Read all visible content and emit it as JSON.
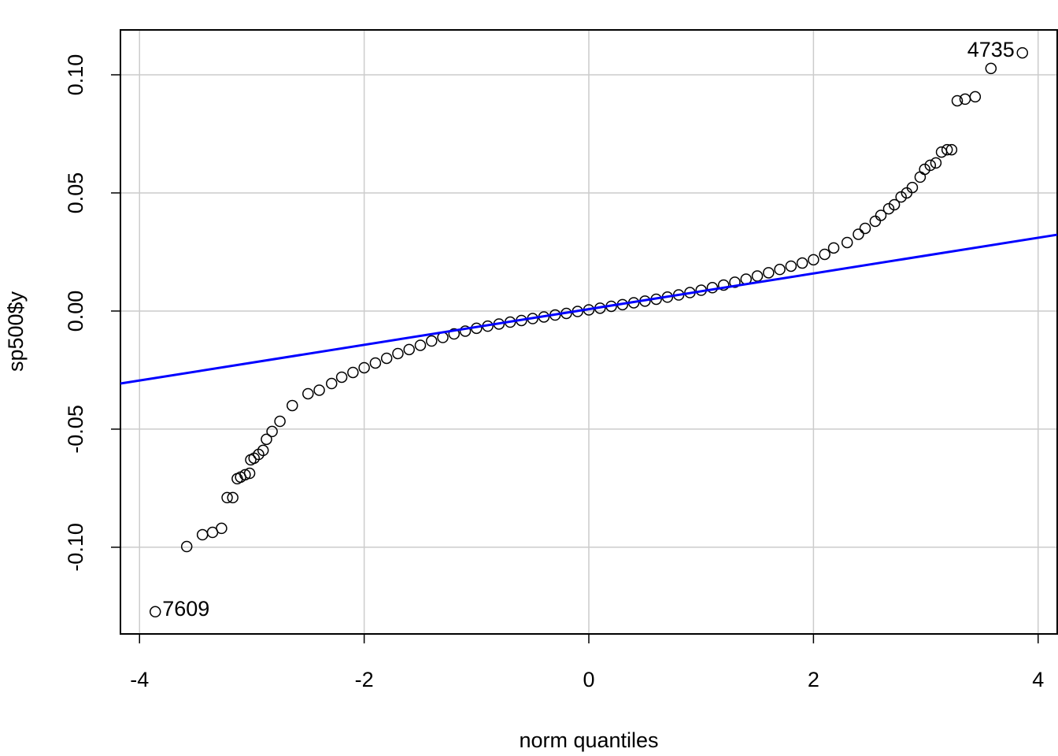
{
  "chart_data": {
    "type": "scatter",
    "xlabel": "norm quantiles",
    "ylabel": "sp500$y",
    "xlim": [
      -4.17,
      4.17
    ],
    "ylim": [
      -0.1367,
      0.119
    ],
    "xticks": [
      -4,
      -2,
      0,
      2,
      4
    ],
    "yticks": [
      {
        "value": 0.1,
        "label": "0.10"
      },
      {
        "value": 0.05,
        "label": "0.05"
      },
      {
        "value": 0,
        "label": "0.00"
      },
      {
        "value": -0.05,
        "label": "-0.05"
      },
      {
        "value": -0.1,
        "label": "-0.10"
      }
    ],
    "grid": true,
    "series": [
      {
        "color": "#000000",
        "x": [
          -3.86,
          -3.58,
          -3.44,
          -3.35,
          -3.27,
          -3.22,
          -3.17,
          -3.13,
          -3.1,
          -3.06,
          -3.02,
          -3.01,
          -2.98,
          -2.94,
          -2.9,
          -2.87,
          -2.82,
          -2.75,
          -2.64,
          -2.5,
          -2.4,
          -2.29,
          -2.2,
          -2.1,
          -2.0,
          -1.9,
          -1.8,
          -1.7,
          -1.6,
          -1.5,
          -1.4,
          -1.3,
          -1.2,
          -1.1,
          -1.0,
          -0.9,
          -0.8,
          -0.7,
          -0.6,
          -0.5,
          -0.4,
          -0.3,
          -0.2,
          -0.1,
          0,
          0.1,
          0.2,
          0.3,
          0.4,
          0.5,
          0.6,
          0.7,
          0.8,
          0.9,
          1.0,
          1.1,
          1.2,
          1.3,
          1.4,
          1.5,
          1.6,
          1.7,
          1.8,
          1.9,
          2.0,
          2.1,
          2.18,
          2.3,
          2.4,
          2.46,
          2.55,
          2.6,
          2.67,
          2.72,
          2.78,
          2.83,
          2.88,
          2.95,
          2.99,
          3.04,
          3.09,
          3.14,
          3.19,
          3.23,
          3.28,
          3.35,
          3.44,
          3.58,
          3.86
        ],
        "values": [
          -0.1273,
          -0.0997,
          -0.0947,
          -0.0937,
          -0.092,
          -0.079,
          -0.079,
          -0.071,
          -0.0703,
          -0.0693,
          -0.0687,
          -0.063,
          -0.0623,
          -0.0607,
          -0.059,
          -0.0543,
          -0.051,
          -0.0467,
          -0.04,
          -0.035,
          -0.0335,
          -0.0307,
          -0.028,
          -0.026,
          -0.024,
          -0.022,
          -0.02,
          -0.018,
          -0.0163,
          -0.0145,
          -0.0127,
          -0.0112,
          -0.0097,
          -0.0085,
          -0.0073,
          -0.0064,
          -0.0055,
          -0.0047,
          -0.004,
          -0.0032,
          -0.0025,
          -0.0017,
          -0.001,
          -0.0002,
          0.0005,
          0.0012,
          0.002,
          0.0027,
          0.0035,
          0.0042,
          0.005,
          0.0059,
          0.0068,
          0.0078,
          0.0088,
          0.0099,
          0.011,
          0.0122,
          0.0135,
          0.0148,
          0.0162,
          0.0176,
          0.019,
          0.0203,
          0.0217,
          0.024,
          0.0267,
          0.029,
          0.0325,
          0.035,
          0.038,
          0.0405,
          0.0433,
          0.045,
          0.0483,
          0.05,
          0.0523,
          0.0567,
          0.06,
          0.0617,
          0.0627,
          0.0673,
          0.0683,
          0.0683,
          0.089,
          0.0897,
          0.0907,
          0.1027,
          0.1093
        ]
      }
    ],
    "qqline": {
      "color": "#0000ff",
      "x": [
        -4.17,
        4.17
      ],
      "y": [
        -0.0307,
        0.0323
      ]
    },
    "annotations": [
      {
        "text": "4735",
        "x": 3.86,
        "y": 0.1093
      },
      {
        "text": "7609",
        "x": -3.86,
        "y": -0.1273
      }
    ]
  }
}
